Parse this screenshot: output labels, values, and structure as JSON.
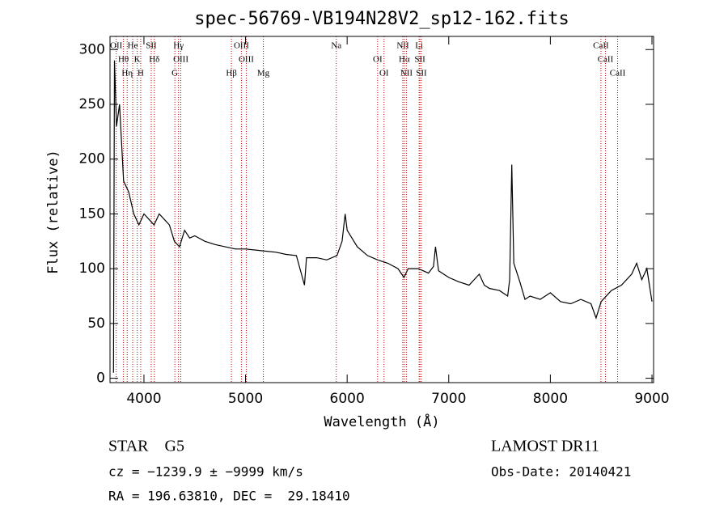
{
  "chart_data": {
    "type": "line",
    "title": "spec-56769-VB194N28V2_sp12-162.fits",
    "xlabel": "Wavelength (Å)",
    "ylabel": "Flux (relative)",
    "xlim": [
      3666,
      9016
    ],
    "ylim": [
      -4,
      312
    ],
    "xticks": [
      4000,
      5000,
      6000,
      7000,
      8000,
      9000
    ],
    "yticks": [
      0,
      50,
      100,
      150,
      200,
      250,
      300
    ],
    "series": [
      {
        "name": "flux",
        "color": "#000000",
        "x": [
          3700,
          3710,
          3730,
          3760,
          3800,
          3850,
          3900,
          3950,
          4000,
          4050,
          4100,
          4150,
          4200,
          4250,
          4300,
          4350,
          4400,
          4450,
          4500,
          4600,
          4700,
          4800,
          4900,
          5000,
          5100,
          5200,
          5300,
          5400,
          5500,
          5580,
          5600,
          5700,
          5800,
          5900,
          5950,
          5980,
          6000,
          6100,
          6200,
          6300,
          6400,
          6500,
          6560,
          6600,
          6700,
          6800,
          6850,
          6870,
          6900,
          7000,
          7100,
          7200,
          7300,
          7350,
          7400,
          7500,
          7580,
          7600,
          7620,
          7640,
          7700,
          7750,
          7800,
          7900,
          8000,
          8100,
          8200,
          8300,
          8400,
          8450,
          8500,
          8600,
          8700,
          8800,
          8850,
          8900,
          8950,
          9000
        ],
        "values": [
          5,
          290,
          230,
          250,
          180,
          170,
          150,
          140,
          150,
          145,
          140,
          150,
          145,
          140,
          125,
          120,
          135,
          128,
          130,
          125,
          122,
          120,
          118,
          118,
          117,
          116,
          115,
          113,
          112,
          85,
          110,
          110,
          108,
          112,
          125,
          150,
          135,
          120,
          112,
          108,
          105,
          100,
          92,
          100,
          100,
          96,
          102,
          120,
          98,
          92,
          88,
          85,
          95,
          85,
          82,
          80,
          75,
          90,
          195,
          105,
          88,
          72,
          75,
          72,
          78,
          70,
          68,
          72,
          68,
          55,
          70,
          80,
          85,
          95,
          105,
          90,
          100,
          70
        ]
      }
    ],
    "lines": [
      {
        "label": "OII",
        "x": 3727
      },
      {
        "label": "Hθ",
        "x": 3798
      },
      {
        "label": "Hη",
        "x": 3835
      },
      {
        "label": "He",
        "x": 3889
      },
      {
        "label": "K",
        "x": 3934
      },
      {
        "label": "H",
        "x": 3968
      },
      {
        "label": "SII",
        "x": 4072
      },
      {
        "label": "Hδ",
        "x": 4102
      },
      {
        "label": "G",
        "x": 4304
      },
      {
        "label": "Hγ",
        "x": 4340
      },
      {
        "label": "OIII",
        "x": 4363
      },
      {
        "label": "Hβ",
        "x": 4861
      },
      {
        "label": "OIII",
        "x": 4959
      },
      {
        "label": "OIII",
        "x": 5007
      },
      {
        "label": "Mg",
        "x": 5175
      },
      {
        "label": "Na",
        "x": 5893
      },
      {
        "label": "OI",
        "x": 6300
      },
      {
        "label": "OI",
        "x": 6363
      },
      {
        "label": "NII",
        "x": 6548
      },
      {
        "label": "Hα",
        "x": 6563
      },
      {
        "label": "NII",
        "x": 6583
      },
      {
        "label": "Li",
        "x": 6708
      },
      {
        "label": "SII",
        "x": 6716
      },
      {
        "label": "SII",
        "x": 6731
      },
      {
        "label": "CaII",
        "x": 8498
      },
      {
        "label": "CaII",
        "x": 8542
      },
      {
        "label": "CaII",
        "x": 8662
      }
    ],
    "info": {
      "class": "STAR    G5",
      "survey": "LAMOST DR11",
      "cz": "cz = −1239.9 ± −9999 km/s",
      "date": "Obs-Date: 20140421",
      "coords": "RA = 196.63810, DEC =  29.18410"
    }
  }
}
